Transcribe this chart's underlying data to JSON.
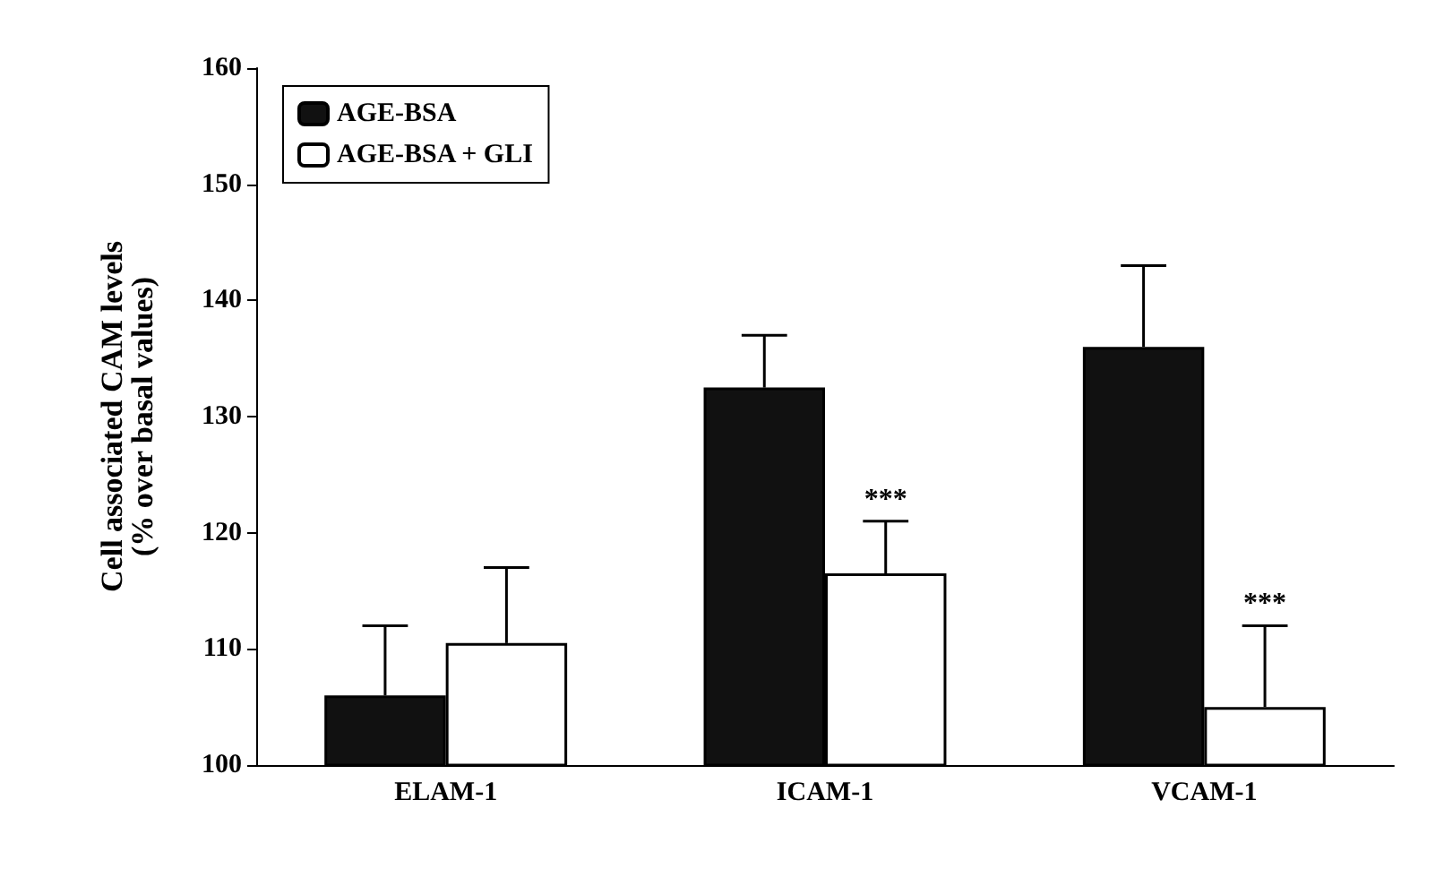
{
  "chart_data": {
    "type": "bar",
    "ylabel": "Cell associated CAM levels\n(% over basal values)",
    "categories": [
      "ELAM-1",
      "ICAM-1",
      "VCAM-1"
    ],
    "series": [
      {
        "name": "AGE-BSA",
        "color": "#111111",
        "values": [
          106,
          132.5,
          136
        ],
        "errors": [
          [
            106,
            112
          ],
          [
            132.5,
            137
          ],
          [
            136,
            143
          ]
        ]
      },
      {
        "name": "AGE-BSA + GLI",
        "color": "#ffffff",
        "values": [
          110.5,
          116.5,
          105
        ],
        "errors": [
          [
            110.5,
            117
          ],
          [
            116.5,
            121
          ],
          [
            105,
            112
          ]
        ]
      }
    ],
    "ylim": [
      100,
      160
    ],
    "yticks": [
      100,
      110,
      120,
      130,
      140,
      150,
      160
    ],
    "grid": false,
    "legend": "top left",
    "annotations": [
      {
        "text": "***",
        "x": "ICAM-1",
        "y": 121
      },
      {
        "text": "***",
        "x": "VCAM-1",
        "y": 112
      }
    ]
  }
}
